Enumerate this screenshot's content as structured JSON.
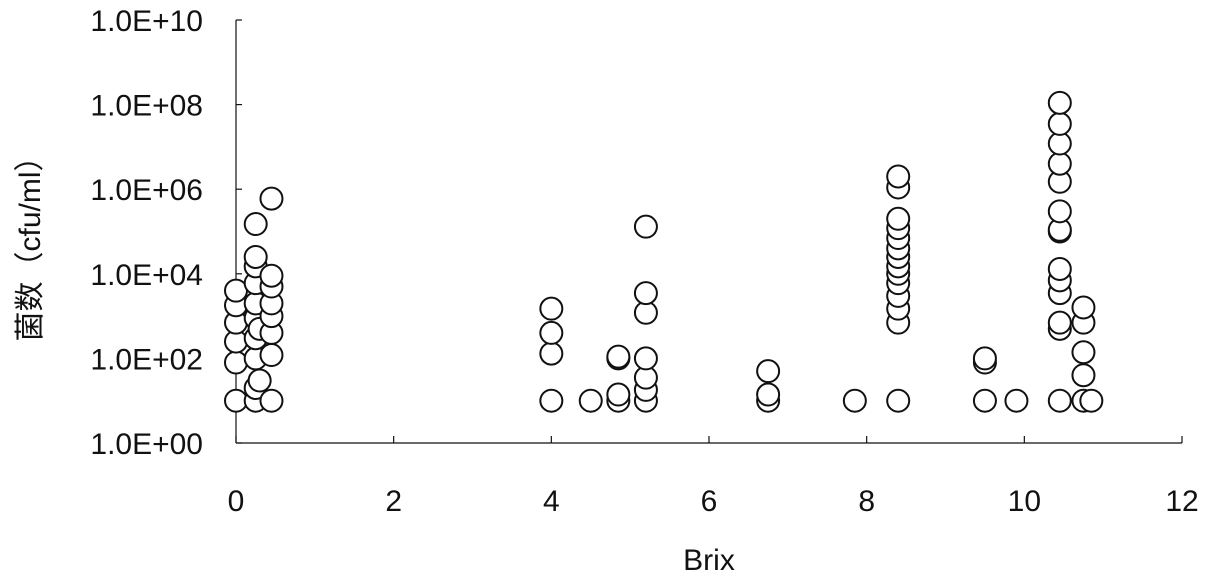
{
  "chart_data": {
    "type": "scatter",
    "title": "",
    "xlabel": "Brix",
    "ylabel": "菌数（cfu/ml）",
    "xlim": [
      0,
      12
    ],
    "ylim": [
      1,
      10000000000
    ],
    "y_scale": "log",
    "grid": false,
    "x_ticks": [
      0,
      2,
      4,
      6,
      8,
      10,
      12
    ],
    "x_tick_labels": [
      "0",
      "2",
      "4",
      "6",
      "8",
      "10",
      "12"
    ],
    "y_ticks": [
      1,
      100,
      10000,
      1000000,
      100000000,
      10000000000
    ],
    "y_tick_labels": [
      "1.0E+00",
      "1.0E+02",
      "1.0E+04",
      "1.0E+06",
      "1.0E+08",
      "1.0E+10"
    ],
    "marker_color": "#111111",
    "points": [
      {
        "x": 0.0,
        "y": 10
      },
      {
        "x": 0.0,
        "y": 80
      },
      {
        "x": 0.0,
        "y": 250
      },
      {
        "x": 0.0,
        "y": 700
      },
      {
        "x": 0.0,
        "y": 1800
      },
      {
        "x": 0.0,
        "y": 4000
      },
      {
        "x": 0.25,
        "y": 10
      },
      {
        "x": 0.25,
        "y": 20
      },
      {
        "x": 0.25,
        "y": 100
      },
      {
        "x": 0.25,
        "y": 300
      },
      {
        "x": 0.25,
        "y": 900
      },
      {
        "x": 0.25,
        "y": 2000
      },
      {
        "x": 0.25,
        "y": 6000
      },
      {
        "x": 0.25,
        "y": 15000
      },
      {
        "x": 0.25,
        "y": 25000
      },
      {
        "x": 0.25,
        "y": 150000
      },
      {
        "x": 0.3,
        "y": 30
      },
      {
        "x": 0.3,
        "y": 500
      },
      {
        "x": 0.45,
        "y": 10
      },
      {
        "x": 0.45,
        "y": 120
      },
      {
        "x": 0.45,
        "y": 400
      },
      {
        "x": 0.45,
        "y": 1000
      },
      {
        "x": 0.45,
        "y": 2000
      },
      {
        "x": 0.45,
        "y": 5000
      },
      {
        "x": 0.45,
        "y": 9000
      },
      {
        "x": 0.45,
        "y": 600000
      },
      {
        "x": 4.0,
        "y": 10
      },
      {
        "x": 4.0,
        "y": 130
      },
      {
        "x": 4.0,
        "y": 400
      },
      {
        "x": 4.0,
        "y": 1500
      },
      {
        "x": 4.5,
        "y": 10
      },
      {
        "x": 4.85,
        "y": 10
      },
      {
        "x": 4.85,
        "y": 14
      },
      {
        "x": 4.85,
        "y": 100
      },
      {
        "x": 4.85,
        "y": 110
      },
      {
        "x": 5.2,
        "y": 10
      },
      {
        "x": 5.2,
        "y": 18
      },
      {
        "x": 5.2,
        "y": 35
      },
      {
        "x": 5.2,
        "y": 100
      },
      {
        "x": 5.2,
        "y": 1200
      },
      {
        "x": 5.2,
        "y": 3500
      },
      {
        "x": 5.2,
        "y": 130000
      },
      {
        "x": 6.75,
        "y": 10
      },
      {
        "x": 6.75,
        "y": 14
      },
      {
        "x": 6.75,
        "y": 50
      },
      {
        "x": 7.85,
        "y": 10
      },
      {
        "x": 8.4,
        "y": 10
      },
      {
        "x": 8.4,
        "y": 700
      },
      {
        "x": 8.4,
        "y": 1500
      },
      {
        "x": 8.4,
        "y": 3000
      },
      {
        "x": 8.4,
        "y": 6000
      },
      {
        "x": 8.4,
        "y": 10000
      },
      {
        "x": 8.4,
        "y": 15000
      },
      {
        "x": 8.4,
        "y": 25000
      },
      {
        "x": 8.4,
        "y": 40000
      },
      {
        "x": 8.4,
        "y": 70000
      },
      {
        "x": 8.4,
        "y": 120000
      },
      {
        "x": 8.4,
        "y": 200000
      },
      {
        "x": 8.4,
        "y": 1100000
      },
      {
        "x": 8.4,
        "y": 2000000
      },
      {
        "x": 9.5,
        "y": 10
      },
      {
        "x": 9.5,
        "y": 80
      },
      {
        "x": 9.5,
        "y": 100
      },
      {
        "x": 9.9,
        "y": 10
      },
      {
        "x": 10.45,
        "y": 10
      },
      {
        "x": 10.45,
        "y": 500
      },
      {
        "x": 10.45,
        "y": 700
      },
      {
        "x": 10.45,
        "y": 3500
      },
      {
        "x": 10.45,
        "y": 7000
      },
      {
        "x": 10.45,
        "y": 13000
      },
      {
        "x": 10.45,
        "y": 100000
      },
      {
        "x": 10.45,
        "y": 110000
      },
      {
        "x": 10.45,
        "y": 300000
      },
      {
        "x": 10.45,
        "y": 1500000
      },
      {
        "x": 10.45,
        "y": 4000000
      },
      {
        "x": 10.45,
        "y": 12000000
      },
      {
        "x": 10.45,
        "y": 35000000
      },
      {
        "x": 10.45,
        "y": 110000000
      },
      {
        "x": 10.75,
        "y": 10
      },
      {
        "x": 10.75,
        "y": 40
      },
      {
        "x": 10.75,
        "y": 140
      },
      {
        "x": 10.75,
        "y": 700
      },
      {
        "x": 10.75,
        "y": 1600
      },
      {
        "x": 10.85,
        "y": 10
      }
    ]
  }
}
